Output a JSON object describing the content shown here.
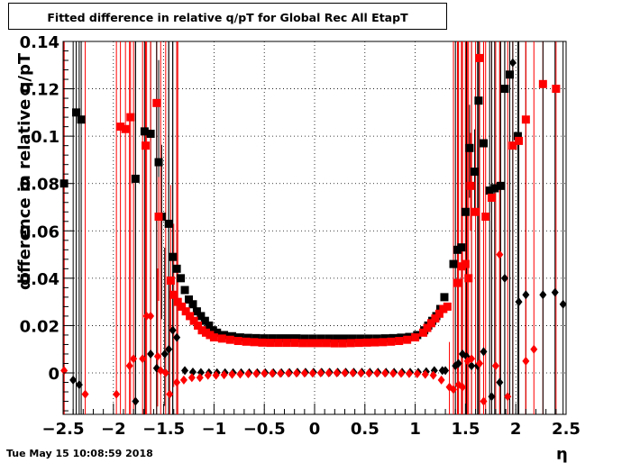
{
  "title": "Fitted difference in relative q/pT  for Global Rec All EtapT",
  "timestamp": "Tue May 15 10:08:59 2018",
  "chart_data": {
    "type": "scatter",
    "title": "Fitted difference in relative q/pT  for Global Rec All EtapT",
    "xlabel": "η",
    "ylabel": "difference in relative q/pT",
    "xlim": [
      -2.5,
      2.5
    ],
    "ylim": [
      -0.0175,
      0.14
    ],
    "grid": true,
    "x_ticks": [
      -2.5,
      -2,
      -1.5,
      -1,
      -0.5,
      0,
      0.5,
      1,
      1.5,
      2,
      2.5
    ],
    "x_tick_labels": [
      "−2.5",
      "−2",
      "−1.5",
      "−1",
      "−0.5",
      "0",
      "0.5",
      "1",
      "1.5",
      "2",
      "2.5"
    ],
    "y_ticks": [
      0,
      0.02,
      0.04,
      0.06,
      0.08,
      0.1,
      0.12,
      0.14
    ],
    "y_tick_labels": [
      "0",
      "0.02",
      "0.04",
      "0.06",
      "0.08",
      "0.1",
      "0.12",
      "0.14"
    ],
    "series": [
      {
        "color": "#000000",
        "marker": "square",
        "points": [
          [
            -2.49,
            0.08
          ],
          [
            -2.37,
            0.11
          ],
          [
            -2.32,
            0.107
          ],
          [
            -1.78,
            0.082
          ],
          [
            -1.69,
            0.102
          ],
          [
            -1.63,
            0.101
          ],
          [
            -1.55,
            0.089
          ],
          [
            -1.52,
            0.066
          ],
          [
            -1.45,
            0.063
          ],
          [
            -1.41,
            0.049
          ],
          [
            -1.37,
            0.044
          ],
          [
            -1.33,
            0.04
          ],
          [
            -1.29,
            0.035
          ],
          [
            -1.25,
            0.031
          ],
          [
            -1.21,
            0.029
          ],
          [
            -1.17,
            0.026
          ],
          [
            -1.13,
            0.024
          ],
          [
            -1.09,
            0.022
          ],
          [
            -1.05,
            0.02
          ],
          [
            -1.01,
            0.018
          ],
          [
            -0.97,
            0.017
          ],
          [
            -0.9,
            0.016
          ],
          [
            -0.82,
            0.0155
          ],
          [
            -0.74,
            0.015
          ],
          [
            -0.66,
            0.0148
          ],
          [
            -0.58,
            0.0147
          ],
          [
            -0.5,
            0.0146
          ],
          [
            -0.42,
            0.0146
          ],
          [
            -0.34,
            0.0146
          ],
          [
            -0.26,
            0.0146
          ],
          [
            -0.18,
            0.0146
          ],
          [
            -0.1,
            0.0145
          ],
          [
            -0.02,
            0.0145
          ],
          [
            0.06,
            0.0145
          ],
          [
            0.14,
            0.0145
          ],
          [
            0.22,
            0.0145
          ],
          [
            0.3,
            0.0145
          ],
          [
            0.38,
            0.0145
          ],
          [
            0.46,
            0.0145
          ],
          [
            0.54,
            0.0145
          ],
          [
            0.62,
            0.0145
          ],
          [
            0.7,
            0.0146
          ],
          [
            0.78,
            0.0147
          ],
          [
            0.86,
            0.0149
          ],
          [
            0.94,
            0.0152
          ],
          [
            1.02,
            0.016
          ],
          [
            1.09,
            0.018
          ],
          [
            1.13,
            0.02
          ],
          [
            1.17,
            0.022
          ],
          [
            1.21,
            0.024
          ],
          [
            1.25,
            0.027
          ],
          [
            1.29,
            0.032
          ],
          [
            1.38,
            0.046
          ],
          [
            1.42,
            0.052
          ],
          [
            1.46,
            0.053
          ],
          [
            1.5,
            0.068
          ],
          [
            1.54,
            0.095
          ],
          [
            1.59,
            0.085
          ],
          [
            1.63,
            0.115
          ],
          [
            1.68,
            0.097
          ],
          [
            1.74,
            0.077
          ],
          [
            1.79,
            0.078
          ],
          [
            1.85,
            0.079
          ],
          [
            1.94,
            0.126
          ],
          [
            2.02,
            0.1
          ],
          [
            1.89,
            0.12
          ]
        ]
      },
      {
        "color": "#ff0000",
        "marker": "square",
        "points": [
          [
            -1.93,
            0.104
          ],
          [
            -1.88,
            0.103
          ],
          [
            -1.83,
            0.108
          ],
          [
            -1.68,
            0.096
          ],
          [
            -1.57,
            0.114
          ],
          [
            -1.55,
            0.066
          ],
          [
            -1.43,
            0.039
          ],
          [
            -1.4,
            0.033
          ],
          [
            -1.36,
            0.03
          ],
          [
            -1.32,
            0.028
          ],
          [
            -1.28,
            0.026
          ],
          [
            -1.24,
            0.024
          ],
          [
            -1.2,
            0.022
          ],
          [
            -1.16,
            0.02
          ],
          [
            -1.12,
            0.018
          ],
          [
            -1.08,
            0.017
          ],
          [
            -1.04,
            0.016
          ],
          [
            -1.0,
            0.015
          ],
          [
            -0.92,
            0.0145
          ],
          [
            -0.84,
            0.014
          ],
          [
            -0.76,
            0.0135
          ],
          [
            -0.68,
            0.0132
          ],
          [
            -0.6,
            0.013
          ],
          [
            -0.52,
            0.0128
          ],
          [
            -0.44,
            0.0127
          ],
          [
            -0.36,
            0.0127
          ],
          [
            -0.28,
            0.0127
          ],
          [
            -0.2,
            0.0127
          ],
          [
            -0.12,
            0.0126
          ],
          [
            -0.04,
            0.0126
          ],
          [
            0.04,
            0.0126
          ],
          [
            0.12,
            0.0126
          ],
          [
            0.2,
            0.0125
          ],
          [
            0.28,
            0.0125
          ],
          [
            0.36,
            0.0126
          ],
          [
            0.44,
            0.0127
          ],
          [
            0.52,
            0.0128
          ],
          [
            0.6,
            0.0129
          ],
          [
            0.68,
            0.013
          ],
          [
            0.76,
            0.0132
          ],
          [
            0.84,
            0.0135
          ],
          [
            0.92,
            0.014
          ],
          [
            1.0,
            0.015
          ],
          [
            1.08,
            0.017
          ],
          [
            1.12,
            0.019
          ],
          [
            1.16,
            0.021
          ],
          [
            1.2,
            0.023
          ],
          [
            1.24,
            0.025
          ],
          [
            1.28,
            0.027
          ],
          [
            1.32,
            0.028
          ],
          [
            1.42,
            0.038
          ],
          [
            1.46,
            0.045
          ],
          [
            1.5,
            0.046
          ],
          [
            1.55,
            0.079
          ],
          [
            1.6,
            0.068
          ],
          [
            1.64,
            0.133
          ],
          [
            1.7,
            0.066
          ],
          [
            1.76,
            0.074
          ],
          [
            1.97,
            0.096
          ],
          [
            2.03,
            0.098
          ],
          [
            2.1,
            0.107
          ],
          [
            2.27,
            0.122
          ],
          [
            2.4,
            0.12
          ],
          [
            1.53,
            0.04
          ]
        ]
      },
      {
        "color": "#000000",
        "marker": "diamond",
        "points": [
          [
            -2.4,
            -0.003
          ],
          [
            -2.34,
            -0.005
          ],
          [
            -1.78,
            -0.012
          ],
          [
            -1.63,
            0.008
          ],
          [
            -1.57,
            0.002
          ],
          [
            -1.49,
            0.008
          ],
          [
            -1.45,
            0.01
          ],
          [
            -1.41,
            0.018
          ],
          [
            -1.37,
            0.015
          ],
          [
            -1.29,
            0.001
          ],
          [
            -1.21,
            0.0004
          ],
          [
            -1.13,
            0.0002
          ],
          [
            -1.05,
            0.0001
          ],
          [
            -0.97,
            0.0001
          ],
          [
            -0.89,
            0.0001
          ],
          [
            -0.81,
            0.0001
          ],
          [
            -0.73,
            0.0001
          ],
          [
            -0.65,
            0.0001
          ],
          [
            -0.57,
            0.0001
          ],
          [
            -0.49,
            0.0001
          ],
          [
            -0.41,
            0.0001
          ],
          [
            -0.33,
            0.0001
          ],
          [
            -0.25,
            0.0002
          ],
          [
            -0.17,
            0.0003
          ],
          [
            -0.09,
            0.0003
          ],
          [
            -0.01,
            0.0003
          ],
          [
            0.07,
            0.0003
          ],
          [
            0.15,
            0.0003
          ],
          [
            0.23,
            0.0003
          ],
          [
            0.31,
            0.0003
          ],
          [
            0.39,
            0.0003
          ],
          [
            0.47,
            0.0003
          ],
          [
            0.55,
            0.0003
          ],
          [
            0.63,
            0.0003
          ],
          [
            0.71,
            0.0003
          ],
          [
            0.79,
            0.0003
          ],
          [
            0.87,
            0.0003
          ],
          [
            0.95,
            0.0003
          ],
          [
            1.03,
            0.0003
          ],
          [
            1.11,
            0.0005
          ],
          [
            1.19,
            0.001
          ],
          [
            1.27,
            0.001
          ],
          [
            1.3,
            0.001
          ],
          [
            1.4,
            0.003
          ],
          [
            1.43,
            0.004
          ],
          [
            1.47,
            0.008
          ],
          [
            1.51,
            0.007
          ],
          [
            1.56,
            0.003
          ],
          [
            1.62,
            0.003
          ],
          [
            1.68,
            0.009
          ],
          [
            1.76,
            -0.01
          ],
          [
            1.84,
            -0.004
          ],
          [
            1.89,
            0.04
          ],
          [
            1.97,
            0.131
          ],
          [
            2.03,
            0.03
          ],
          [
            2.1,
            0.033
          ],
          [
            2.27,
            0.033
          ],
          [
            2.39,
            0.034
          ],
          [
            2.47,
            0.029
          ]
        ]
      },
      {
        "color": "#ff0000",
        "marker": "diamond",
        "points": [
          [
            -2.49,
            0.001
          ],
          [
            -2.28,
            -0.009
          ],
          [
            -1.97,
            -0.009
          ],
          [
            -1.84,
            0.003
          ],
          [
            -1.8,
            0.006
          ],
          [
            -1.71,
            0.006
          ],
          [
            -1.67,
            0.024
          ],
          [
            -1.63,
            0.024
          ],
          [
            -1.56,
            0.007
          ],
          [
            -1.53,
            0.001
          ],
          [
            -1.48,
            0.0
          ],
          [
            -1.44,
            -0.009
          ],
          [
            -1.37,
            -0.004
          ],
          [
            -1.3,
            -0.003
          ],
          [
            -1.22,
            -0.002
          ],
          [
            -1.14,
            -0.002
          ],
          [
            -1.06,
            -0.001
          ],
          [
            -0.98,
            -0.001
          ],
          [
            -0.9,
            -0.0008
          ],
          [
            -0.82,
            -0.0006
          ],
          [
            -0.74,
            -0.0005
          ],
          [
            -0.66,
            -0.0004
          ],
          [
            -0.58,
            -0.0003
          ],
          [
            -0.5,
            -0.0002
          ],
          [
            -0.42,
            -0.0002
          ],
          [
            -0.34,
            -0.0002
          ],
          [
            -0.26,
            -0.0001
          ],
          [
            -0.18,
            -0.0001
          ],
          [
            -0.1,
            -0.0001
          ],
          [
            -0.02,
            -0.0001
          ],
          [
            0.06,
            0.0
          ],
          [
            0.14,
            0.0
          ],
          [
            0.22,
            0.0
          ],
          [
            0.3,
            0.0
          ],
          [
            0.38,
            0.0
          ],
          [
            0.46,
            -0.0001
          ],
          [
            0.54,
            -0.0001
          ],
          [
            0.62,
            -0.0001
          ],
          [
            0.7,
            -0.0001
          ],
          [
            0.78,
            -0.0002
          ],
          [
            0.86,
            -0.0002
          ],
          [
            0.94,
            -0.0003
          ],
          [
            1.02,
            -0.0004
          ],
          [
            1.1,
            -0.0006
          ],
          [
            1.18,
            -0.001
          ],
          [
            1.26,
            -0.003
          ],
          [
            1.34,
            -0.006
          ],
          [
            1.38,
            -0.007
          ],
          [
            1.43,
            -0.005
          ],
          [
            1.47,
            -0.006
          ],
          [
            1.52,
            0.005
          ],
          [
            1.56,
            0.006
          ],
          [
            1.64,
            0.004
          ],
          [
            1.68,
            -0.012
          ],
          [
            1.8,
            0.003
          ],
          [
            1.84,
            0.05
          ],
          [
            1.92,
            -0.01
          ],
          [
            2.1,
            0.005
          ],
          [
            2.18,
            0.01
          ]
        ]
      }
    ]
  }
}
